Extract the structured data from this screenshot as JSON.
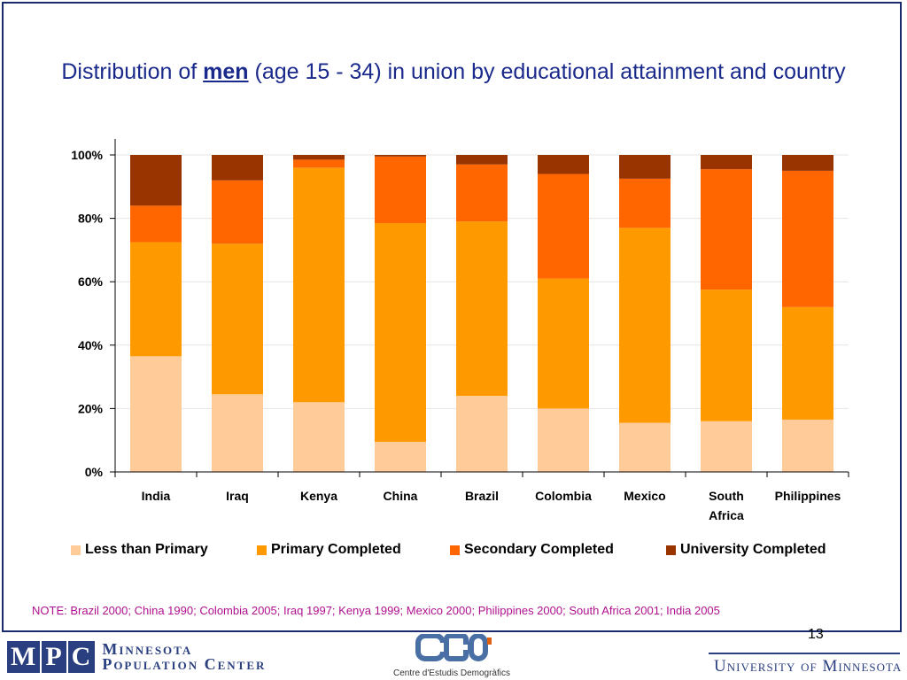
{
  "title": {
    "before": "Distribution of ",
    "emphasis": "men",
    "after": " (age 15 - 34) in union by educational attainment and country"
  },
  "chart_data": {
    "type": "bar",
    "stacked": true,
    "categories": [
      "India",
      "Iraq",
      "Kenya",
      "China",
      "Brazil",
      "Colombia",
      "Mexico",
      "South Africa",
      "Philippines"
    ],
    "category_lines": [
      [
        "India"
      ],
      [
        "Iraq"
      ],
      [
        "Kenya"
      ],
      [
        "China"
      ],
      [
        "Brazil"
      ],
      [
        "Colombia"
      ],
      [
        "Mexico"
      ],
      [
        "South",
        "Africa"
      ],
      [
        "Philippines"
      ]
    ],
    "series": [
      {
        "name": "Less than Primary",
        "color": "#FFCC99",
        "values": [
          36.5,
          24.5,
          22.0,
          9.5,
          24.0,
          20.0,
          15.5,
          16.0,
          16.5
        ]
      },
      {
        "name": "Primary Completed",
        "color": "#FF9900",
        "values": [
          36.0,
          47.5,
          74.0,
          69.0,
          55.0,
          41.0,
          61.5,
          41.5,
          35.5
        ]
      },
      {
        "name": "Secondary Completed",
        "color": "#FF6600",
        "values": [
          11.5,
          20.0,
          2.5,
          21.0,
          18.0,
          33.0,
          15.5,
          38.0,
          43.0
        ]
      },
      {
        "name": "University Completed",
        "color": "#993300",
        "values": [
          16.0,
          8.0,
          1.5,
          0.5,
          3.0,
          6.0,
          7.5,
          4.5,
          5.0
        ]
      }
    ],
    "y_ticks": [
      "0%",
      "20%",
      "40%",
      "60%",
      "80%",
      "100%"
    ],
    "ylim": [
      0,
      100
    ],
    "grid": true,
    "legend_position": "bottom"
  },
  "note": "NOTE: Brazil 2000; China 1990; Colombia  2005; Iraq 1997; Kenya 1999; Mexico 2000; Philippines 2000; South Africa 2001; India 2005",
  "page_number": "13",
  "footer": {
    "mpc_letters": [
      "M",
      "P",
      "C"
    ],
    "mpc_line1": "Minnesota",
    "mpc_line2": "Population Center",
    "ced_caption": "Centre d'Estudis Demogràfics",
    "umn": "University of Minnesota"
  }
}
